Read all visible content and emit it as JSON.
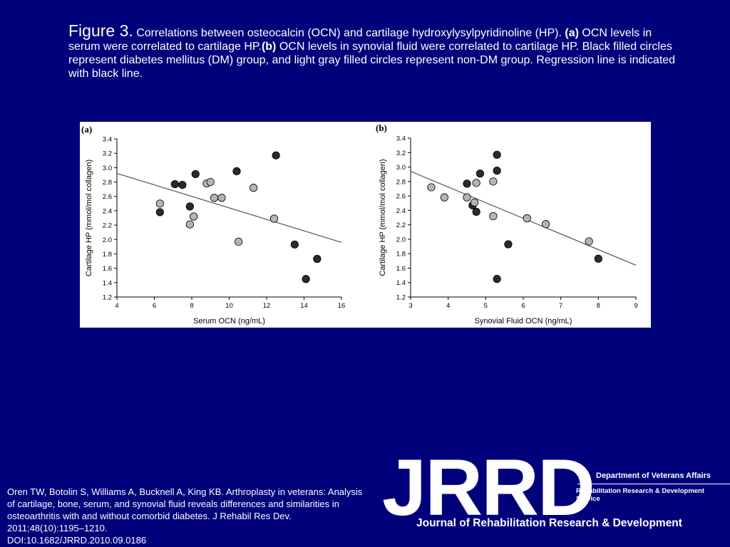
{
  "caption": {
    "figure_label": "Figure 3.",
    "intro": "Correlations between osteocalcin (OCN) and cartilage hydroxylysylpyridinoline (HP).",
    "a_label": "(a)",
    "a_text": "OCN levels in serum were correlated to cartilage HP.",
    "b_label": "(b)",
    "b_text": "OCN levels in synovial fluid were correlated to cartilage HP. Black filled circles represent diabetes mellitus (DM) group, and light gray filled circles represent non-DM group. Regression line is indicated with black line."
  },
  "citation": {
    "text": "Oren TW, Botolin S, Williams A, Bucknell A, King KB. Arthroplasty in veterans: Analysis of cartilage, bone, serum, and synovial fluid reveals differences and similarities in osteoarthritis with and without comorbid diabetes. J Rehabil Res Dev. 2011;48(10):1195–1210.",
    "doi": "DOI:10.1682/JRRD.2010.09.0186"
  },
  "logo": {
    "letters": "JRRD",
    "org": "Department of Veterans Affairs",
    "service": "Rehabilitation Research & Development Service",
    "journal": "Journal of Rehabilitation Research & Development"
  },
  "colors": {
    "background": "#00007a",
    "dm_point": "#2a2a2a",
    "non_dm_point": "#b4b4b4",
    "regression_line": "#555555"
  },
  "chart_data": [
    {
      "type": "scatter",
      "panel_label": "(a)",
      "xlabel": "Serum OCN (ng/mL)",
      "ylabel": "Cartilage HP (mmol/mol collagen)",
      "xlim": [
        4,
        16
      ],
      "ylim": [
        1.2,
        3.4
      ],
      "xticks": [
        4,
        6,
        8,
        10,
        12,
        14,
        16
      ],
      "yticks": [
        1.2,
        1.4,
        1.6,
        1.8,
        2.0,
        2.2,
        2.4,
        2.6,
        2.8,
        3.0,
        3.2,
        3.4
      ],
      "grid": false,
      "series": [
        {
          "group": "dm",
          "points": [
            [
              6.3,
              2.38
            ],
            [
              7.1,
              2.77
            ],
            [
              7.5,
              2.76
            ],
            [
              7.9,
              2.46
            ],
            [
              8.2,
              2.91
            ],
            [
              10.4,
              2.95
            ],
            [
              12.5,
              3.17
            ],
            [
              13.5,
              1.93
            ],
            [
              14.1,
              1.45
            ],
            [
              14.7,
              1.73
            ]
          ]
        },
        {
          "group": "non_dm",
          "points": [
            [
              6.3,
              2.5
            ],
            [
              7.9,
              2.21
            ],
            [
              8.1,
              2.32
            ],
            [
              8.8,
              2.78
            ],
            [
              9.0,
              2.8
            ],
            [
              9.2,
              2.58
            ],
            [
              9.6,
              2.58
            ],
            [
              10.5,
              1.97
            ],
            [
              11.3,
              2.72
            ],
            [
              12.4,
              2.29
            ]
          ]
        }
      ],
      "regression": [
        [
          4,
          2.92
        ],
        [
          16,
          1.96
        ]
      ]
    },
    {
      "type": "scatter",
      "panel_label": "(b)",
      "xlabel": "Synovial Fluid OCN (ng/mL)",
      "ylabel": "Cartilage HP (mmol/mol collagen)",
      "xlim": [
        3,
        9
      ],
      "ylim": [
        1.2,
        3.4
      ],
      "xticks": [
        3,
        4,
        5,
        6,
        7,
        8,
        9
      ],
      "yticks": [
        1.2,
        1.4,
        1.6,
        1.8,
        2.0,
        2.2,
        2.4,
        2.6,
        2.8,
        3.0,
        3.2,
        3.4
      ],
      "grid": false,
      "series": [
        {
          "group": "dm",
          "points": [
            [
              4.5,
              2.77
            ],
            [
              4.65,
              2.47
            ],
            [
              4.75,
              2.38
            ],
            [
              4.85,
              2.91
            ],
            [
              5.3,
              3.17
            ],
            [
              5.3,
              2.95
            ],
            [
              5.3,
              1.45
            ],
            [
              5.6,
              1.93
            ],
            [
              8.0,
              1.73
            ]
          ]
        },
        {
          "group": "non_dm",
          "points": [
            [
              3.55,
              2.72
            ],
            [
              3.9,
              2.58
            ],
            [
              4.5,
              2.58
            ],
            [
              4.7,
              2.51
            ],
            [
              4.75,
              2.78
            ],
            [
              5.2,
              2.8
            ],
            [
              5.2,
              2.32
            ],
            [
              6.1,
              2.29
            ],
            [
              6.6,
              2.21
            ],
            [
              7.75,
              1.97
            ]
          ]
        }
      ],
      "regression": [
        [
          3,
          2.94
        ],
        [
          9,
          1.64
        ]
      ]
    }
  ]
}
